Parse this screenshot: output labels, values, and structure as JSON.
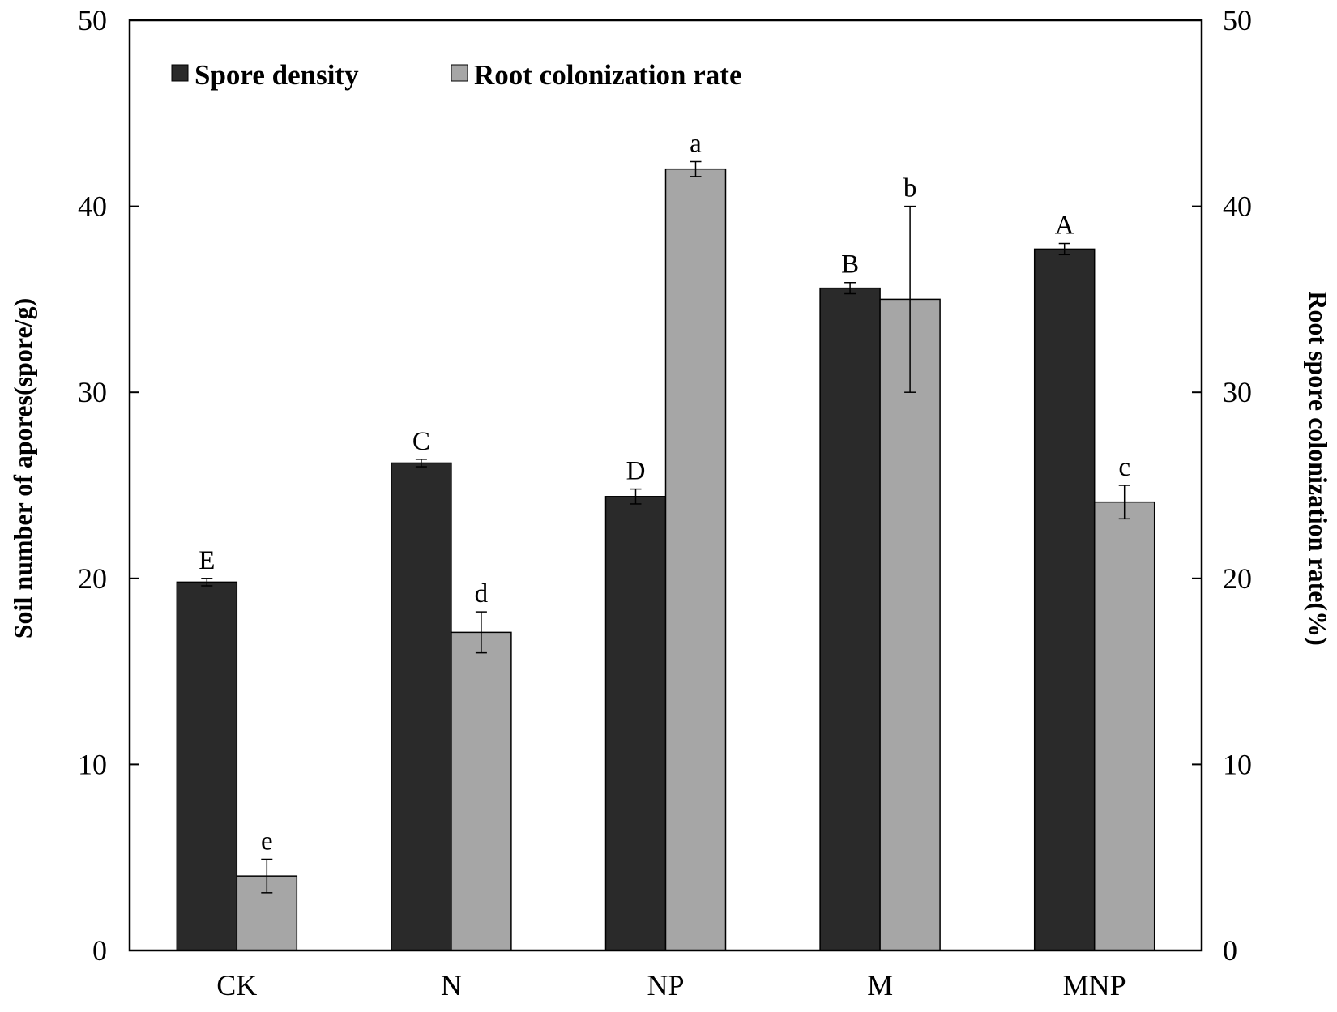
{
  "chart_data": {
    "type": "bar",
    "categories": [
      "CK",
      "N",
      "NP",
      "M",
      "MNP"
    ],
    "series": [
      {
        "name": "Spore density",
        "axis": "left",
        "color": "#2a2a2a",
        "values": [
          19.8,
          26.2,
          24.4,
          35.6,
          37.7
        ],
        "errors": [
          0.2,
          0.2,
          0.4,
          0.3,
          0.3
        ],
        "labels": [
          "E",
          "C",
          "D",
          "B",
          "A"
        ]
      },
      {
        "name": "Root colonization rate",
        "axis": "right",
        "color": "#a6a6a6",
        "values": [
          4.0,
          17.1,
          42.0,
          35.0,
          24.1
        ],
        "errors": [
          0.9,
          1.1,
          0.4,
          5.0,
          0.9
        ],
        "labels": [
          "e",
          "d",
          "a",
          "b",
          "c"
        ]
      }
    ],
    "ylabel": "Soil number of apores(spore/g)",
    "y2label": "Root spore colonization rate(%)",
    "ylim": [
      0,
      50
    ],
    "y2lim": [
      0,
      50
    ],
    "yticks": [
      0,
      10,
      20,
      30,
      40,
      50
    ],
    "y2ticks": [
      0,
      10,
      20,
      30,
      40,
      50
    ],
    "legend_position": "top-left",
    "grid": false
  }
}
